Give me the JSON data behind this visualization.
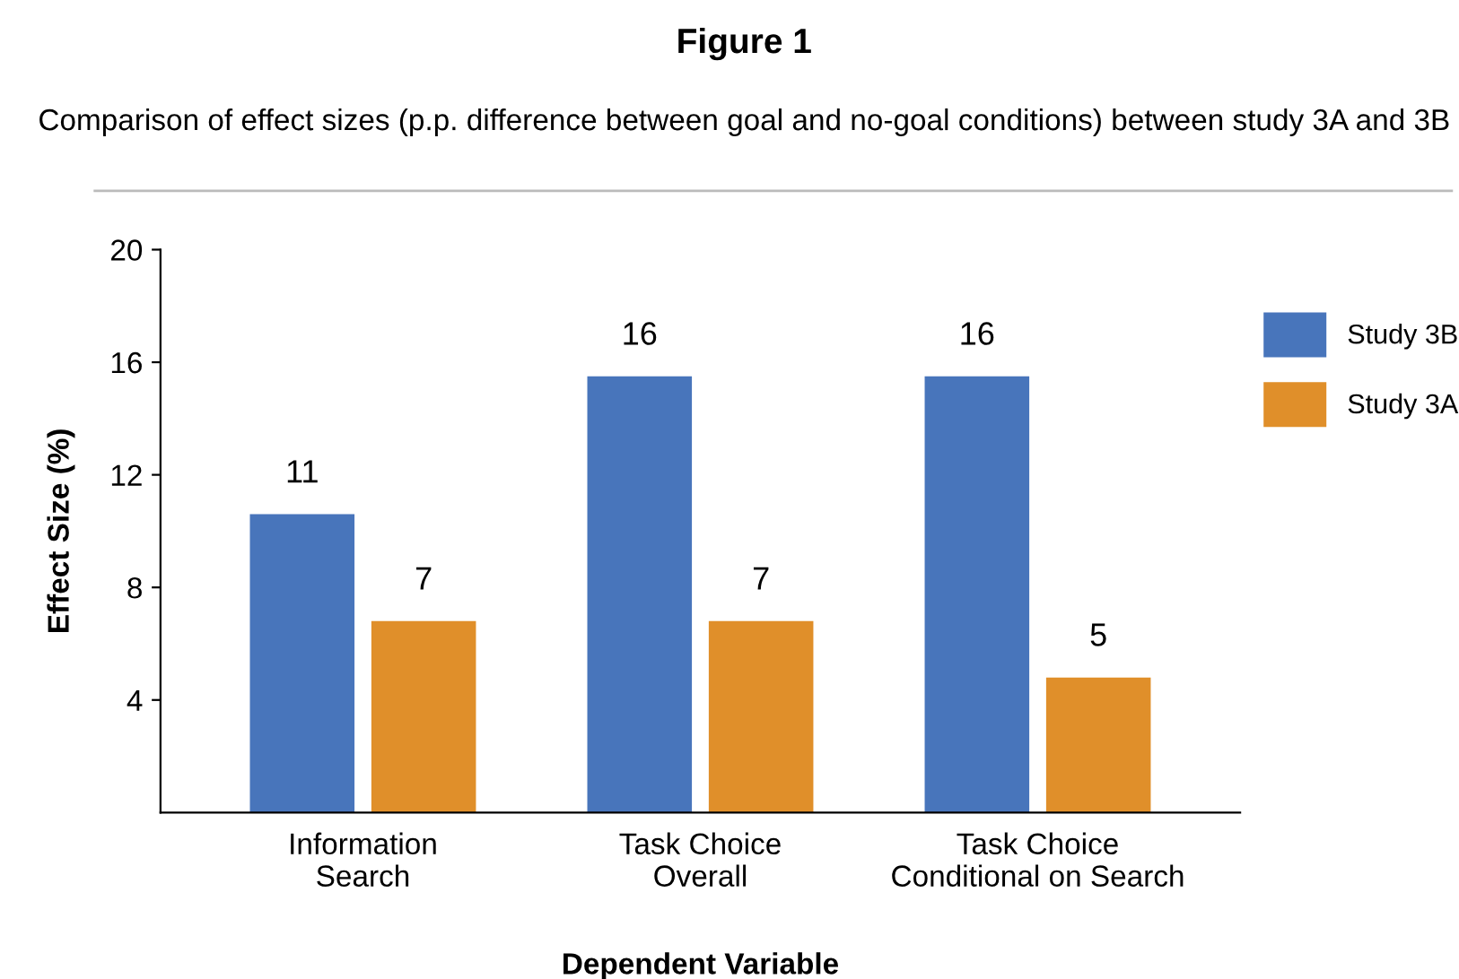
{
  "chart_data": {
    "type": "bar",
    "title": "Figure 1",
    "subtitle": "Comparison of effect sizes (p.p. difference between goal and no-goal conditions) between study 3A and 3B",
    "xlabel": "Dependent Variable",
    "ylabel": "Effect Size (%)",
    "categories": [
      "Information\nSearch",
      "Task Choice\nOverall",
      "Task Choice\nConditional on Search"
    ],
    "series": [
      {
        "name": "Study 3B",
        "color": "#4875bb",
        "values": [
          10.6,
          15.5,
          15.5
        ],
        "value_labels": [
          "11",
          "16",
          "16"
        ]
      },
      {
        "name": "Study 3A",
        "color": "#e08f2a",
        "values": [
          6.8,
          6.8,
          4.8
        ],
        "value_labels": [
          "7",
          "7",
          "5"
        ]
      }
    ],
    "ylim": [
      0,
      20
    ],
    "yticks": [
      4,
      8,
      12,
      16,
      20
    ],
    "grid": false,
    "legend": "right"
  }
}
